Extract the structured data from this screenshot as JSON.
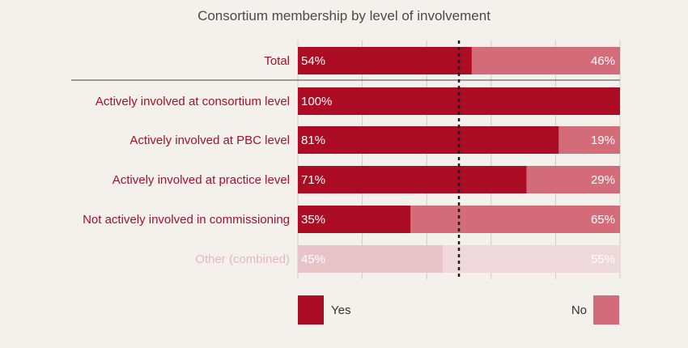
{
  "chart_data": {
    "type": "bar",
    "stacked": true,
    "orientation": "horizontal",
    "title": "Consortium membership by level of involvement",
    "categories": [
      "Total",
      "Actively involved at consortium level",
      "Actively involved at PBC level",
      "Actively involved at practice level",
      "Not actively involved in commissioning",
      "Other (combined)"
    ],
    "series": [
      {
        "name": "Yes",
        "values": [
          54,
          100,
          81,
          71,
          35,
          45
        ]
      },
      {
        "name": "No",
        "values": [
          46,
          0,
          19,
          29,
          65,
          55
        ]
      }
    ],
    "value_labels": {
      "yes": [
        "54%",
        "100%",
        "81%",
        "71%",
        "35%",
        "45%"
      ],
      "no": [
        "46%",
        "",
        "19%",
        "29%",
        "65%",
        "55%"
      ]
    },
    "faded_categories": [
      "Other (combined)"
    ],
    "xlim": [
      0,
      100
    ],
    "reference_line": 50,
    "grid": true,
    "legend_position": "bottom",
    "colors": {
      "yes": "#ad0d24",
      "no": "#d36b78",
      "yes_faded": "#e8c4c9",
      "no_faded": "#eed8db",
      "label": "#a3112a",
      "label_faded": "#e3b7bd",
      "grid": "#cfcac4",
      "background": "#f4f1ed"
    }
  }
}
